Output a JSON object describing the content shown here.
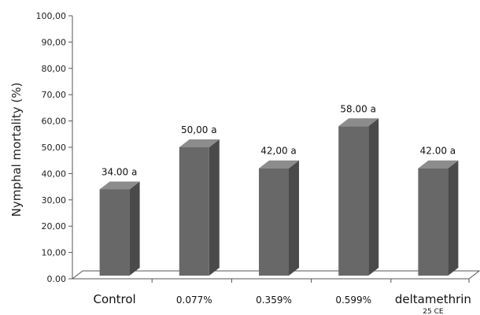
{
  "chart_data": {
    "type": "bar",
    "title": "",
    "ylabel": "Nymphal mortality (%)",
    "xlabel": "",
    "ylim": [
      0,
      100
    ],
    "yticks": [
      "0.00",
      "10,00",
      "20,00",
      "30,00",
      "40,00",
      "50,00",
      "60,00",
      "70,00",
      "80,00",
      "90,00",
      "100,00"
    ],
    "categories": [
      "Control",
      "0.077%",
      "0.359%",
      "0.599%",
      "deltamethrin"
    ],
    "category_sublabels": [
      "",
      "",
      "",
      "",
      "25 CE"
    ],
    "values": [
      34.0,
      50.0,
      42.0,
      58.0,
      42.0
    ],
    "data_labels": [
      "34.00 a",
      "50,00 a",
      "42,00 a",
      "58.00 a",
      "42.00 a"
    ],
    "style": "3d-column",
    "colors": {
      "bar_front": "#686868",
      "bar_side": "#4a4a4a",
      "bar_top": "#8c8c8c",
      "floor": "#ffffff",
      "axis": "#555555"
    },
    "grid": false,
    "legend": "none"
  }
}
